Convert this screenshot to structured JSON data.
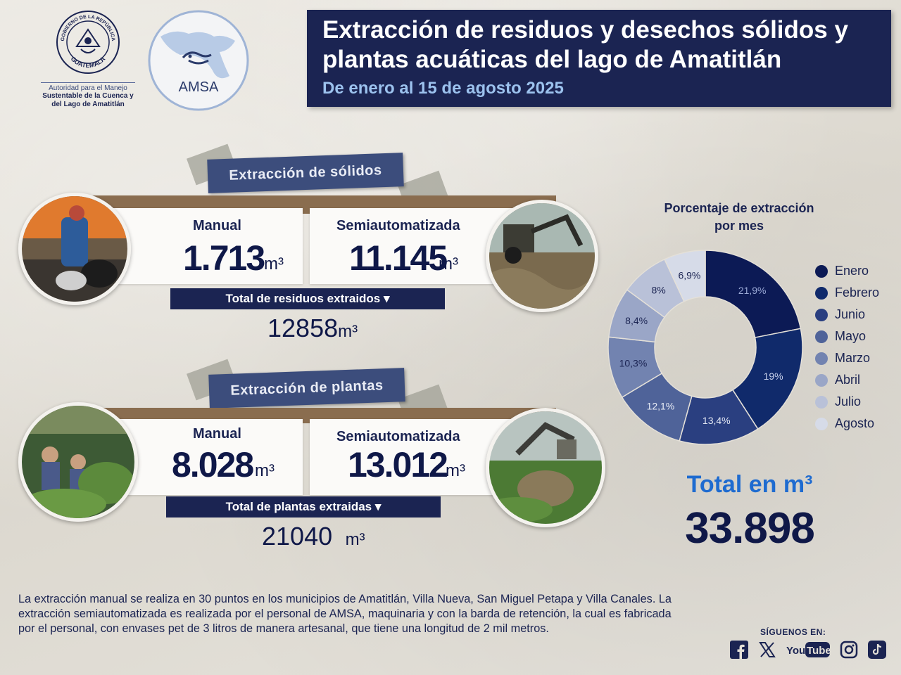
{
  "header": {
    "gov_seal_text_top": "GOBIERNO DE LA REPÚBLICA",
    "gov_seal_text_bottom": "GUATEMALA",
    "gov_org_line1": "Autoridad para el Manejo",
    "gov_org_line2": "Sustentable de la Cuenca y",
    "gov_org_line3": "del Lago de Amatitlán",
    "amsa_logo_text": "AMSA",
    "title": "Extracción de residuos y desechos sólidos y plantas acuáticas del lago de Amatitlán",
    "subtitle": "De enero al 15 de agosto 2025"
  },
  "solids": {
    "banner": "Extracción de sólidos",
    "manual_label": "Manual",
    "manual_value": "1.713",
    "manual_unit": "m³",
    "semi_label": "Semiautomatizada",
    "semi_value": "11.145",
    "semi_unit": "m³",
    "total_label": "Total de residuos extraidos ▾",
    "total_value": "12858",
    "total_unit": "m³"
  },
  "plants": {
    "banner": "Extracción de plantas",
    "manual_label": "Manual",
    "manual_value": "8.028",
    "manual_unit": "m³",
    "semi_label": "Semiautomatizada",
    "semi_value": "13.012",
    "semi_unit": "m³",
    "total_label": "Total de plantas extraidas ▾",
    "total_value": "21040",
    "total_unit": "m³"
  },
  "chart_title": "Porcentaje de extracción por mes",
  "chart_data": {
    "type": "pie",
    "title": "Porcentaje de extracción por mes",
    "categories": [
      "Enero",
      "Febrero",
      "Junio",
      "Mayo",
      "Marzo",
      "Abril",
      "Julio",
      "Agosto"
    ],
    "values": [
      21.9,
      19,
      13.4,
      12.1,
      10.3,
      8.4,
      8,
      6.9
    ],
    "labels": [
      "21,9%",
      "19%",
      "13,4%",
      "12,1%",
      "10,3%",
      "8,4%",
      "8%",
      "6,9%"
    ],
    "colors": [
      "#0c1a55",
      "#102a6b",
      "#2a3f80",
      "#4f6399",
      "#7283b0",
      "#9aa6c7",
      "#b9c1d8",
      "#d6dbe8"
    ],
    "label_colors": [
      "#9aa9d6",
      "#c7d0ea",
      "#e1e6f3",
      "#e9edf6",
      "#1b2452",
      "#1b2452",
      "#1b2452",
      "#1b2452"
    ],
    "donut": true,
    "legend": "right"
  },
  "grand_total": {
    "label": "Total en m³",
    "value": "33.898"
  },
  "note": "La extracción manual se realiza en 30 puntos en los municipios de Amatitlán, Villa Nueva, San Miguel Petapa y Villa Canales. La extracción semiautomatizada es realizada por el personal de AMSA, maquinaria y con la barda de retención, la cual es fabricada por el personal, con envases pet de 3 litros de manera artesanal, que tiene una longitud de 2 mil metros.",
  "footer": {
    "follow_label": "SÍGUENOS EN:",
    "youtube_text": "YouTube"
  },
  "social_icons": [
    "facebook-icon",
    "x-icon",
    "youtube-icon",
    "instagram-icon",
    "tiktok-icon"
  ]
}
